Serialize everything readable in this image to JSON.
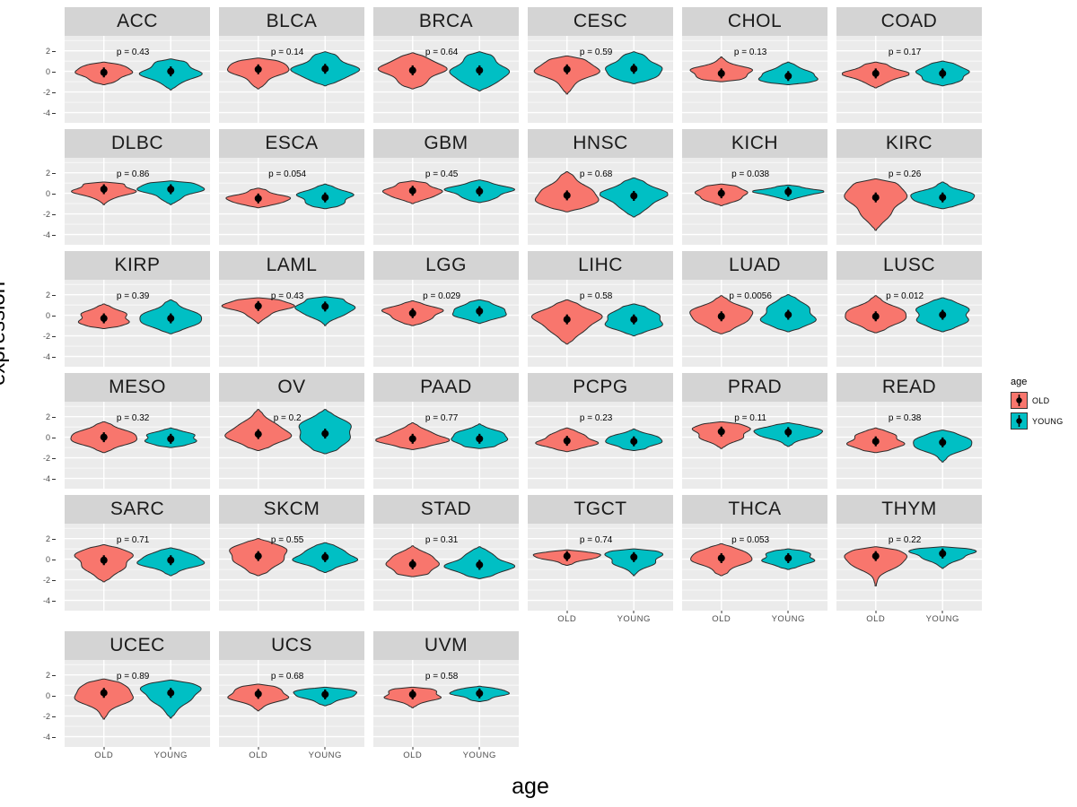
{
  "figure": {
    "y_axis": {
      "title": "expression",
      "tick_labels": [
        "2",
        "0",
        "-2",
        "-4"
      ],
      "tick_values": [
        2,
        0,
        -2,
        -4
      ],
      "minor_values": [
        3,
        1,
        -1,
        -3
      ],
      "range": [
        -5.0,
        3.45
      ]
    },
    "x_axis": {
      "title": "age",
      "tick_labels": [
        "OLD",
        "YOUNG"
      ]
    },
    "legend": {
      "title": "age",
      "entries": [
        {
          "label": "OLD",
          "color": "#F8766D"
        },
        {
          "label": "YOUNG",
          "color": "#00BFC4"
        }
      ]
    },
    "style": {
      "panel_bg": "#EBEBEB",
      "strip_bg": "#D4D4D4",
      "grid_color": "#FFFFFF",
      "outline": "#2B2B2B",
      "marker_color": "#000000",
      "tick_text_color": "#4D4D4D"
    }
  },
  "chart_data": {
    "type": "violin",
    "facet_by": "cancer type",
    "x": "age",
    "y": "expression",
    "groups": [
      "OLD",
      "YOUNG"
    ],
    "grid": {
      "rows": 6,
      "cols": 6
    },
    "facets": [
      {
        "name": "ACC",
        "p_label": "p = 0.43",
        "p": 0.43,
        "violins": [
          {
            "group": "OLD",
            "median": -0.1,
            "min": -1.3,
            "max": 0.9
          },
          {
            "group": "YOUNG",
            "median": 0.0,
            "min": -1.8,
            "max": 1.2
          }
        ]
      },
      {
        "name": "BLCA",
        "p_label": "p = 0.14",
        "p": 0.14,
        "violins": [
          {
            "group": "OLD",
            "median": 0.2,
            "min": -1.7,
            "max": 1.3
          },
          {
            "group": "YOUNG",
            "median": 0.25,
            "min": -1.4,
            "max": 1.9
          }
        ]
      },
      {
        "name": "BRCA",
        "p_label": "p = 0.64",
        "p": 0.64,
        "violins": [
          {
            "group": "OLD",
            "median": 0.1,
            "min": -1.7,
            "max": 1.8
          },
          {
            "group": "YOUNG",
            "median": 0.1,
            "min": -1.9,
            "max": 1.9
          }
        ]
      },
      {
        "name": "CESC",
        "p_label": "p = 0.59",
        "p": 0.59,
        "violins": [
          {
            "group": "OLD",
            "median": 0.2,
            "min": -2.2,
            "max": 1.5
          },
          {
            "group": "YOUNG",
            "median": 0.25,
            "min": -1.2,
            "max": 1.9
          }
        ]
      },
      {
        "name": "CHOL",
        "p_label": "p = 0.13",
        "p": 0.13,
        "violins": [
          {
            "group": "OLD",
            "median": -0.2,
            "min": -1.0,
            "max": 1.4
          },
          {
            "group": "YOUNG",
            "median": -0.45,
            "min": -1.3,
            "max": 0.9
          }
        ]
      },
      {
        "name": "COAD",
        "p_label": "p = 0.17",
        "p": 0.17,
        "violins": [
          {
            "group": "OLD",
            "median": -0.2,
            "min": -1.6,
            "max": 0.9
          },
          {
            "group": "YOUNG",
            "median": -0.2,
            "min": -1.4,
            "max": 1.0
          }
        ]
      },
      {
        "name": "DLBC",
        "p_label": "p = 0.86",
        "p": 0.86,
        "violins": [
          {
            "group": "OLD",
            "median": 0.4,
            "min": -1.1,
            "max": 1.1
          },
          {
            "group": "YOUNG",
            "median": 0.4,
            "min": -1.1,
            "max": 1.2
          }
        ]
      },
      {
        "name": "ESCA",
        "p_label": "p = 0.054",
        "p": 0.054,
        "violins": [
          {
            "group": "OLD",
            "median": -0.5,
            "min": -1.4,
            "max": 0.5
          },
          {
            "group": "YOUNG",
            "median": -0.4,
            "min": -1.5,
            "max": 0.9
          }
        ]
      },
      {
        "name": "GBM",
        "p_label": "p = 0.45",
        "p": 0.45,
        "violins": [
          {
            "group": "OLD",
            "median": 0.25,
            "min": -1.0,
            "max": 1.2
          },
          {
            "group": "YOUNG",
            "median": 0.2,
            "min": -0.9,
            "max": 1.3
          }
        ]
      },
      {
        "name": "HNSC",
        "p_label": "p = 0.68",
        "p": 0.68,
        "violins": [
          {
            "group": "OLD",
            "median": -0.2,
            "min": -1.8,
            "max": 2.1
          },
          {
            "group": "YOUNG",
            "median": -0.25,
            "min": -2.3,
            "max": 1.5
          }
        ]
      },
      {
        "name": "KICH",
        "p_label": "p = 0.038",
        "p": 0.038,
        "violins": [
          {
            "group": "OLD",
            "median": 0.0,
            "min": -1.2,
            "max": 0.9
          },
          {
            "group": "YOUNG",
            "median": 0.15,
            "min": -0.7,
            "max": 0.8
          }
        ]
      },
      {
        "name": "KIRC",
        "p_label": "p = 0.26",
        "p": 0.26,
        "violins": [
          {
            "group": "OLD",
            "median": -0.4,
            "min": -3.6,
            "max": 1.4
          },
          {
            "group": "YOUNG",
            "median": -0.4,
            "min": -1.5,
            "max": 1.1
          }
        ]
      },
      {
        "name": "KIRP",
        "p_label": "p = 0.39",
        "p": 0.39,
        "violins": [
          {
            "group": "OLD",
            "median": -0.3,
            "min": -1.3,
            "max": 1.1
          },
          {
            "group": "YOUNG",
            "median": -0.3,
            "min": -1.8,
            "max": 1.5
          }
        ]
      },
      {
        "name": "LAML",
        "p_label": "p = 0.43",
        "p": 0.43,
        "violins": [
          {
            "group": "OLD",
            "median": 0.9,
            "min": -0.8,
            "max": 1.7
          },
          {
            "group": "YOUNG",
            "median": 0.85,
            "min": -1.0,
            "max": 1.8
          }
        ]
      },
      {
        "name": "LGG",
        "p_label": "p = 0.029",
        "p": 0.029,
        "violins": [
          {
            "group": "OLD",
            "median": 0.2,
            "min": -1.0,
            "max": 1.4
          },
          {
            "group": "YOUNG",
            "median": 0.4,
            "min": -0.8,
            "max": 1.5
          }
        ]
      },
      {
        "name": "LIHC",
        "p_label": "p = 0.58",
        "p": 0.58,
        "violins": [
          {
            "group": "OLD",
            "median": -0.4,
            "min": -2.8,
            "max": 1.5
          },
          {
            "group": "YOUNG",
            "median": -0.4,
            "min": -2.0,
            "max": 1.1
          }
        ]
      },
      {
        "name": "LUAD",
        "p_label": "p = 0.0056",
        "p": 0.0056,
        "violins": [
          {
            "group": "OLD",
            "median": -0.1,
            "min": -1.8,
            "max": 1.9
          },
          {
            "group": "YOUNG",
            "median": 0.05,
            "min": -1.6,
            "max": 2.0
          }
        ]
      },
      {
        "name": "LUSC",
        "p_label": "p = 0.012",
        "p": 0.012,
        "violins": [
          {
            "group": "OLD",
            "median": -0.1,
            "min": -1.7,
            "max": 1.9
          },
          {
            "group": "YOUNG",
            "median": 0.05,
            "min": -1.6,
            "max": 1.7
          }
        ]
      },
      {
        "name": "MESO",
        "p_label": "p = 0.32",
        "p": 0.32,
        "violins": [
          {
            "group": "OLD",
            "median": 0.0,
            "min": -1.5,
            "max": 1.5
          },
          {
            "group": "YOUNG",
            "median": -0.15,
            "min": -1.0,
            "max": 0.9
          }
        ]
      },
      {
        "name": "OV",
        "p_label": "p = 0.2",
        "p": 0.2,
        "violins": [
          {
            "group": "OLD",
            "median": 0.3,
            "min": -1.3,
            "max": 2.7
          },
          {
            "group": "YOUNG",
            "median": 0.35,
            "min": -1.6,
            "max": 2.7
          }
        ]
      },
      {
        "name": "PAAD",
        "p_label": "p = 0.77",
        "p": 0.77,
        "violins": [
          {
            "group": "OLD",
            "median": -0.15,
            "min": -1.2,
            "max": 1.4
          },
          {
            "group": "YOUNG",
            "median": -0.15,
            "min": -1.1,
            "max": 1.3
          }
        ]
      },
      {
        "name": "PCPG",
        "p_label": "p = 0.23",
        "p": 0.23,
        "violins": [
          {
            "group": "OLD",
            "median": -0.35,
            "min": -1.4,
            "max": 0.9
          },
          {
            "group": "YOUNG",
            "median": -0.4,
            "min": -1.3,
            "max": 0.8
          }
        ]
      },
      {
        "name": "PRAD",
        "p_label": "p = 0.11",
        "p": 0.11,
        "violins": [
          {
            "group": "OLD",
            "median": 0.55,
            "min": -1.1,
            "max": 1.5
          },
          {
            "group": "YOUNG",
            "median": 0.5,
            "min": -0.9,
            "max": 1.4
          }
        ]
      },
      {
        "name": "READ",
        "p_label": "p = 0.38",
        "p": 0.38,
        "violins": [
          {
            "group": "OLD",
            "median": -0.4,
            "min": -1.5,
            "max": 0.9
          },
          {
            "group": "YOUNG",
            "median": -0.5,
            "min": -2.4,
            "max": 0.7
          }
        ]
      },
      {
        "name": "SARC",
        "p_label": "p = 0.71",
        "p": 0.71,
        "violins": [
          {
            "group": "OLD",
            "median": -0.1,
            "min": -2.2,
            "max": 1.4
          },
          {
            "group": "YOUNG",
            "median": -0.1,
            "min": -1.6,
            "max": 1.1
          }
        ]
      },
      {
        "name": "SKCM",
        "p_label": "p = 0.55",
        "p": 0.55,
        "violins": [
          {
            "group": "OLD",
            "median": 0.3,
            "min": -1.6,
            "max": 2.0
          },
          {
            "group": "YOUNG",
            "median": 0.2,
            "min": -1.3,
            "max": 1.6
          }
        ]
      },
      {
        "name": "STAD",
        "p_label": "p = 0.31",
        "p": 0.31,
        "violins": [
          {
            "group": "OLD",
            "median": -0.5,
            "min": -1.7,
            "max": 1.3
          },
          {
            "group": "YOUNG",
            "median": -0.55,
            "min": -1.9,
            "max": 1.2
          }
        ]
      },
      {
        "name": "TGCT",
        "p_label": "p = 0.74",
        "p": 0.74,
        "violins": [
          {
            "group": "OLD",
            "median": 0.3,
            "min": -0.6,
            "max": 0.9
          },
          {
            "group": "YOUNG",
            "median": 0.2,
            "min": -1.6,
            "max": 1.0
          }
        ]
      },
      {
        "name": "THCA",
        "p_label": "p = 0.053",
        "p": 0.053,
        "violins": [
          {
            "group": "OLD",
            "median": 0.1,
            "min": -1.6,
            "max": 1.5
          },
          {
            "group": "YOUNG",
            "median": 0.1,
            "min": -1.0,
            "max": 1.0
          }
        ]
      },
      {
        "name": "THYM",
        "p_label": "p = 0.22",
        "p": 0.22,
        "violins": [
          {
            "group": "OLD",
            "median": 0.3,
            "min": -2.6,
            "max": 1.2
          },
          {
            "group": "YOUNG",
            "median": 0.55,
            "min": -0.9,
            "max": 1.2
          }
        ]
      },
      {
        "name": "UCEC",
        "p_label": "p = 0.89",
        "p": 0.89,
        "violins": [
          {
            "group": "OLD",
            "median": 0.25,
            "min": -2.3,
            "max": 1.6
          },
          {
            "group": "YOUNG",
            "median": 0.25,
            "min": -2.2,
            "max": 1.5
          }
        ]
      },
      {
        "name": "UCS",
        "p_label": "p = 0.68",
        "p": 0.68,
        "violins": [
          {
            "group": "OLD",
            "median": 0.15,
            "min": -1.5,
            "max": 1.1
          },
          {
            "group": "YOUNG",
            "median": 0.1,
            "min": -1.0,
            "max": 0.8
          }
        ]
      },
      {
        "name": "UVM",
        "p_label": "p = 0.58",
        "p": 0.58,
        "violins": [
          {
            "group": "OLD",
            "median": 0.1,
            "min": -1.2,
            "max": 0.8
          },
          {
            "group": "YOUNG",
            "median": 0.2,
            "min": -0.6,
            "max": 0.9
          }
        ]
      }
    ]
  }
}
